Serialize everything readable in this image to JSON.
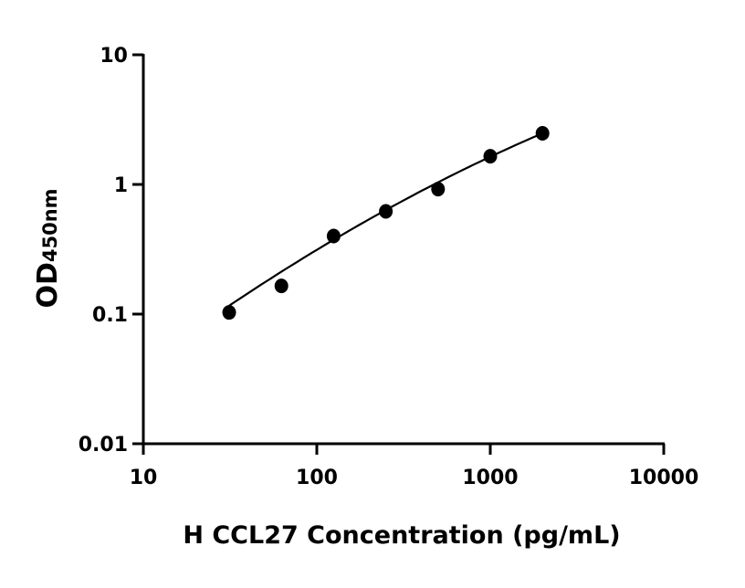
{
  "chart_data": {
    "type": "scatter",
    "title": "",
    "xlabel": "H CCL27 Concentration (pg/mL)",
    "ylabel": "OD",
    "ylabel_subscript": "450nm",
    "x_scale": "log",
    "y_scale": "log",
    "xlim": [
      10,
      10000
    ],
    "ylim": [
      0.01,
      10
    ],
    "x_ticks": [
      10,
      100,
      1000,
      10000
    ],
    "x_tick_labels": [
      "10",
      "100",
      "1000",
      "10000"
    ],
    "y_ticks": [
      0.01,
      0.1,
      1,
      10
    ],
    "y_tick_labels": [
      "0.01",
      "0.1",
      "1",
      "10"
    ],
    "grid": false,
    "legend": "none",
    "marker_color": "#000000",
    "series": [
      {
        "x": [
          31.25,
          62.5,
          125,
          250,
          500,
          1000,
          2000
        ],
        "y": [
          0.103,
          0.165,
          0.4,
          0.62,
          0.92,
          1.65,
          2.48
        ]
      }
    ],
    "fit_curve": {
      "x": [
        31.25,
        250,
        2000
      ],
      "y": [
        0.116,
        0.635,
        2.48
      ]
    }
  }
}
